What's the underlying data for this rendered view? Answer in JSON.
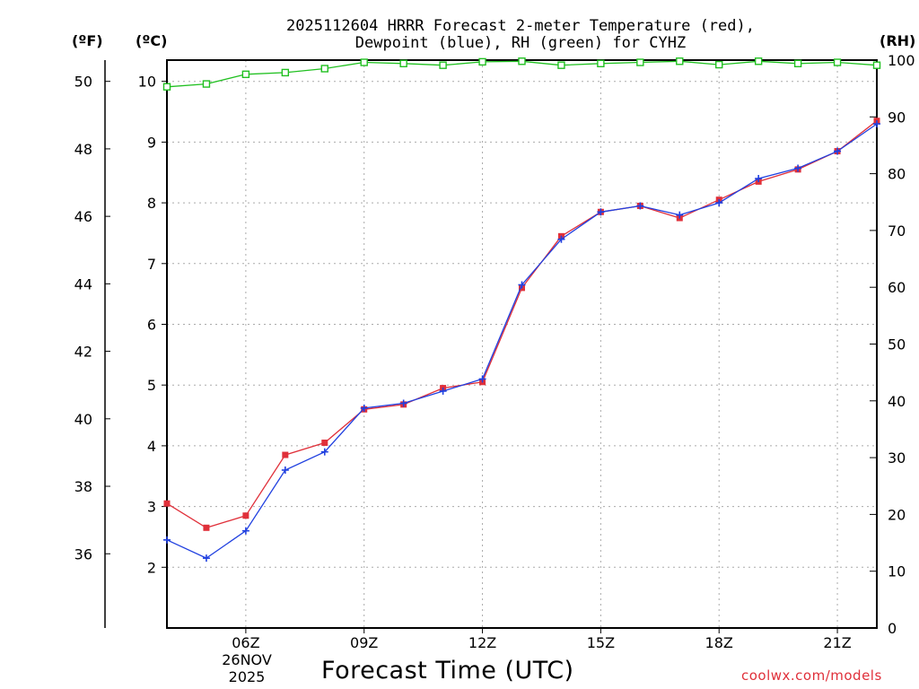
{
  "titles": {
    "line1": "2025112604 HRRR Forecast 2-meter Temperature (red),",
    "line2": "Dewpoint (blue), RH (green) for CYHZ"
  },
  "units": {
    "fahrenheit": "(ºF)",
    "celsius": "(ºC)",
    "rh": "(RH)"
  },
  "date": {
    "day": "26NOV",
    "year": "2025"
  },
  "credit": "coolwx.com/models",
  "colors": {
    "temperature": "#e0303a",
    "dewpoint": "#2040e0",
    "rh": "#20c020",
    "grid": "#aaaaaa"
  },
  "chart_data": {
    "type": "line",
    "title": "2025112604 HRRR Forecast 2-meter Temperature (red), Dewpoint (blue), RH (green) for CYHZ",
    "xlabel": "Forecast Time (UTC)",
    "x_hours_utc": [
      4,
      5,
      6,
      7,
      8,
      9,
      10,
      11,
      12,
      13,
      14,
      15,
      16,
      17,
      18,
      19,
      20,
      21,
      22
    ],
    "xlim": [
      4,
      22
    ],
    "x_ticks": [
      {
        "hour": 6,
        "label": "06Z"
      },
      {
        "hour": 9,
        "label": "09Z"
      },
      {
        "hour": 12,
        "label": "12Z"
      },
      {
        "hour": 15,
        "label": "15Z"
      },
      {
        "hour": 18,
        "label": "18Z"
      },
      {
        "hour": 21,
        "label": "21Z"
      }
    ],
    "y_celsius": {
      "lim": [
        1.0,
        10.35
      ],
      "ticks": [
        2,
        3,
        4,
        5,
        6,
        7,
        8,
        9,
        10
      ]
    },
    "y_fahrenheit": {
      "lim": [
        33.8,
        50.63
      ],
      "ticks": [
        36,
        38,
        40,
        42,
        44,
        46,
        48,
        50
      ]
    },
    "y_rh": {
      "lim": [
        0,
        100
      ],
      "ticks": [
        0,
        10,
        20,
        30,
        40,
        50,
        60,
        70,
        80,
        90,
        100
      ]
    },
    "series": [
      {
        "name": "Temperature",
        "axis": "celsius",
        "marker": "square",
        "values": [
          3.05,
          2.65,
          2.85,
          3.85,
          4.05,
          4.6,
          4.68,
          4.95,
          5.05,
          6.6,
          7.45,
          7.85,
          7.95,
          7.75,
          8.05,
          8.35,
          8.55,
          8.85,
          9.35
        ]
      },
      {
        "name": "Dewpoint",
        "axis": "celsius",
        "marker": "plus",
        "values": [
          2.45,
          2.15,
          2.6,
          3.6,
          3.9,
          4.62,
          4.7,
          4.9,
          5.1,
          6.65,
          7.4,
          7.85,
          7.95,
          7.8,
          8.0,
          8.4,
          8.57,
          8.85,
          9.3
        ]
      },
      {
        "name": "RH",
        "axis": "rh",
        "marker": "open-square",
        "values": [
          95.3,
          95.8,
          97.5,
          97.8,
          98.5,
          99.6,
          99.4,
          99.1,
          99.7,
          99.8,
          99.1,
          99.4,
          99.6,
          99.8,
          99.2,
          99.8,
          99.4,
          99.6,
          99.1
        ]
      }
    ]
  }
}
